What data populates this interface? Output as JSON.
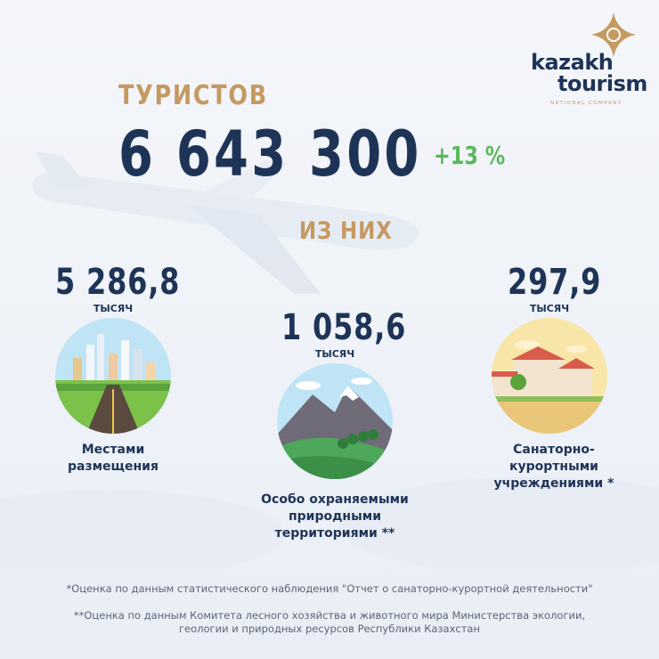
{
  "logo": {
    "line1": "kazakh",
    "line2": "tourism",
    "tagline": "NATIONAL COMPANY",
    "icon": "ornament-star-icon"
  },
  "header": {
    "label": "ТУРИСТОВ",
    "total": "6 643 300",
    "growth": "+13 %",
    "subheading": "ИЗ НИХ"
  },
  "colors": {
    "navy": "#1e3457",
    "gold": "#c49a62",
    "green": "#5cb85c"
  },
  "categories": [
    {
      "value": "5 286,8",
      "unit": "ТЫСЯЧ",
      "label_lines": [
        "Местами",
        "размещения"
      ],
      "icon": "city-road-icon"
    },
    {
      "value": "1 058,6",
      "unit": "ТЫСЯЧ",
      "label_lines": [
        "Особо охраняемыми",
        "природными",
        "территориями **"
      ],
      "icon": "mountains-icon"
    },
    {
      "value": "297,9",
      "unit": "ТЫСЯЧ",
      "label_lines": [
        "Санаторно-",
        "курортными",
        "учреждениями *"
      ],
      "icon": "resort-houses-icon"
    }
  ],
  "footnotes": [
    "*Оценка по данным  статистического наблюдения \"Отчет о санаторно-курортной деятельности\"",
    "**Оценка по данным  Комитета лесного хозяйства и животного мира Министерства экологии,",
    "геологии и природных ресурсов Республики Казахстан"
  ]
}
